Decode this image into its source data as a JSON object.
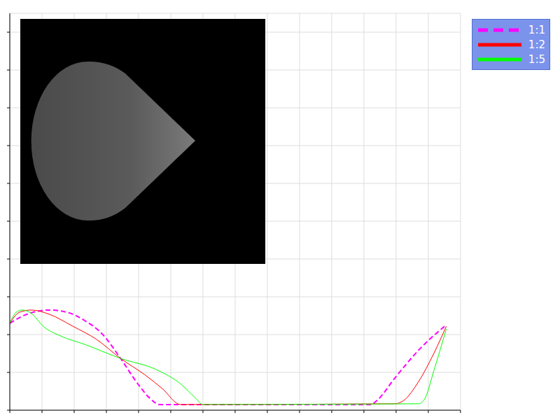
{
  "chart_data": {
    "type": "line",
    "xlim": [
      0,
      14
    ],
    "ylim": [
      0,
      10.5
    ],
    "xticks": [
      0,
      1,
      2,
      3,
      4,
      5,
      6,
      7,
      8,
      9,
      10,
      11,
      12,
      13,
      14
    ],
    "yticks": [
      0,
      1,
      2,
      3,
      4,
      5,
      6,
      7,
      8,
      9,
      10
    ],
    "grid": true,
    "tick_labels": false,
    "legend": "upper right",
    "series": [
      {
        "name": "1:1",
        "color": "#ff00ff",
        "line_style": "dashed",
        "x": [
          0,
          0.48,
          1.22,
          1.78,
          2.33,
          2.89,
          3.44,
          4.0,
          4.37,
          4.65,
          11.22,
          11.41,
          11.96,
          12.7,
          13.56
        ],
        "values": [
          2.3,
          2.52,
          2.65,
          2.59,
          2.37,
          2.0,
          1.37,
          0.67,
          0.3,
          0.15,
          0.15,
          0.26,
          0.85,
          1.59,
          2.26
        ]
      },
      {
        "name": "1:2",
        "color": "#ff0000",
        "line_style": "solid",
        "x": [
          0,
          0.3,
          0.67,
          1.22,
          1.96,
          2.7,
          3.44,
          4.19,
          4.74,
          5.3,
          11.96,
          12.24,
          12.7,
          13.17,
          13.56
        ],
        "values": [
          2.3,
          2.59,
          2.65,
          2.54,
          2.22,
          1.87,
          1.37,
          0.94,
          0.57,
          0.15,
          0.17,
          0.26,
          0.76,
          1.5,
          2.22
        ]
      },
      {
        "name": "1:5",
        "color": "#00ff00",
        "line_style": "solid",
        "x": [
          0,
          0.2,
          0.39,
          0.67,
          1.04,
          1.59,
          2.33,
          3.44,
          4.56,
          5.3,
          5.76,
          6.0,
          12.7,
          12.89,
          13.17,
          13.56
        ],
        "values": [
          2.3,
          2.59,
          2.65,
          2.56,
          2.22,
          1.96,
          1.74,
          1.37,
          1.07,
          0.7,
          0.33,
          0.15,
          0.17,
          0.3,
          1.04,
          2.15
        ]
      }
    ]
  }
}
